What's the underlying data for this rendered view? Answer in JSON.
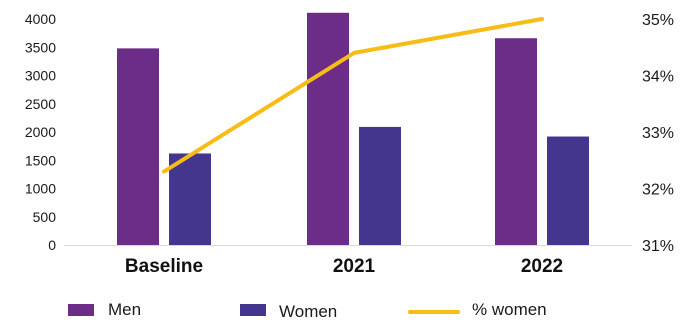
{
  "chart_data": {
    "type": "bar",
    "combo_series_type": "line",
    "categories": [
      "Baseline",
      "2021",
      "2022"
    ],
    "series": [
      {
        "name": "Men",
        "type": "bar",
        "axis": "left",
        "values": [
          3480,
          4110,
          3660
        ]
      },
      {
        "name": "Women",
        "type": "bar",
        "axis": "left",
        "values": [
          1620,
          2090,
          1920
        ]
      },
      {
        "name": "% women",
        "type": "line",
        "axis": "right",
        "values": [
          32.3,
          34.4,
          35.0
        ]
      }
    ],
    "left_axis": {
      "ylim": [
        0,
        4000
      ],
      "ticks": [
        0,
        500,
        1000,
        1500,
        2000,
        2500,
        3000,
        3500,
        4000
      ],
      "tick_labels": [
        "0",
        "500",
        "1000",
        "1500",
        "2000",
        "2500",
        "3000",
        "3500",
        "4000"
      ]
    },
    "right_axis": {
      "ylim": [
        31,
        35
      ],
      "ticks": [
        31,
        32,
        33,
        34,
        35
      ],
      "tick_labels": [
        "31%",
        "32%",
        "33%",
        "34%",
        "35%"
      ]
    },
    "colors": {
      "men": "#6b2d87",
      "women": "#43368c",
      "pct_women": "#f7bd16"
    },
    "legend": {
      "placement": "bottom",
      "entries": [
        "Men",
        "Women",
        "% women"
      ]
    },
    "grid": false
  }
}
